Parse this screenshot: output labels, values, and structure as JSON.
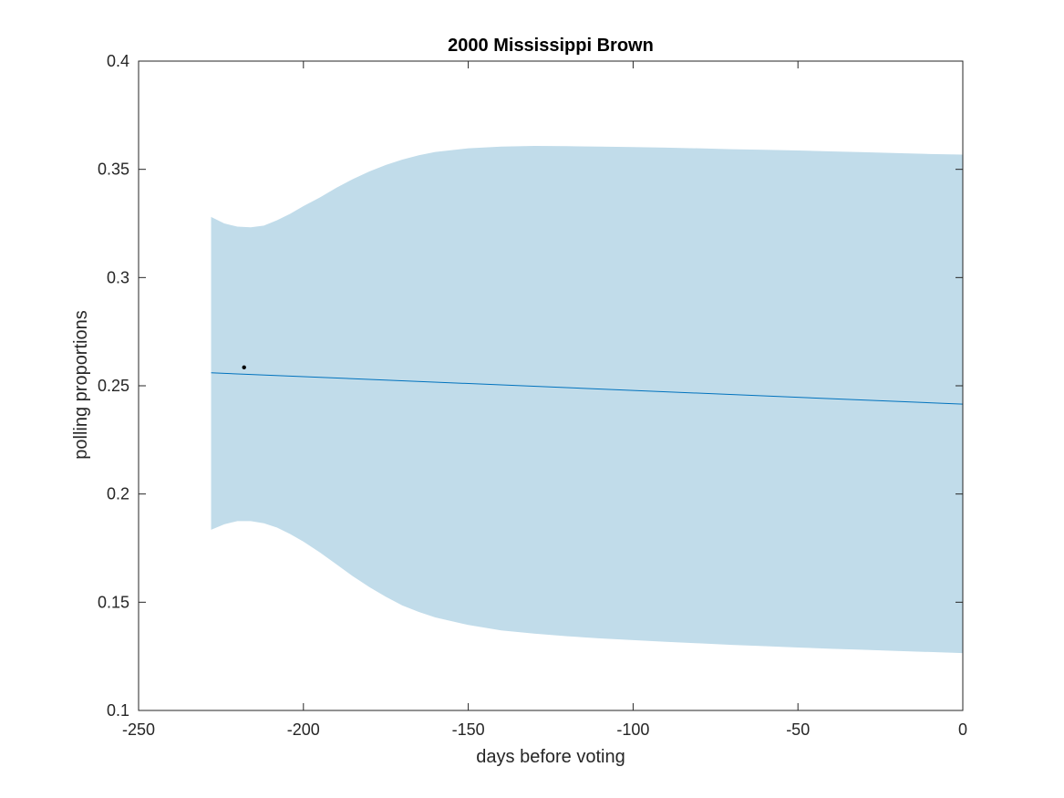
{
  "chart_data": {
    "type": "line",
    "title": "2000 Mississippi Brown",
    "xlabel": "days before voting",
    "ylabel": "polling proportions",
    "xlim": [
      -250,
      0
    ],
    "ylim": [
      0.1,
      0.4
    ],
    "xticks": [
      -250,
      -200,
      -150,
      -100,
      -50,
      0
    ],
    "yticks": [
      0.1,
      0.15,
      0.2,
      0.25,
      0.3,
      0.35,
      0.4
    ],
    "xtick_labels": [
      "-250",
      "-200",
      "-150",
      "-100",
      "-50",
      "0"
    ],
    "ytick_labels": [
      "0.1",
      "0.15",
      "0.2",
      "0.25",
      "0.3",
      "0.35",
      "0.4"
    ],
    "grid": false,
    "series": [
      {
        "kind": "band",
        "color": "#c1dcea",
        "x": [
          -228,
          -224,
          -220,
          -216,
          -212,
          -208,
          -204,
          -200,
          -195,
          -190,
          -185,
          -180,
          -175,
          -170,
          -165,
          -160,
          -150,
          -140,
          -130,
          -120,
          -110,
          -100,
          -90,
          -80,
          -70,
          -60,
          -50,
          -40,
          -30,
          -20,
          -10,
          0
        ],
        "upper": [
          0.328,
          0.325,
          0.3235,
          0.3232,
          0.324,
          0.3265,
          0.3295,
          0.333,
          0.337,
          0.3415,
          0.3455,
          0.349,
          0.352,
          0.3545,
          0.3565,
          0.358,
          0.3597,
          0.3605,
          0.3608,
          0.3607,
          0.3605,
          0.3603,
          0.36,
          0.3597,
          0.3593,
          0.359,
          0.3587,
          0.3583,
          0.3579,
          0.3575,
          0.3571,
          0.3568
        ],
        "lower": [
          0.1835,
          0.186,
          0.1875,
          0.1875,
          0.1865,
          0.1845,
          0.1815,
          0.178,
          0.173,
          0.1675,
          0.162,
          0.157,
          0.1525,
          0.1485,
          0.1455,
          0.143,
          0.1395,
          0.137,
          0.1355,
          0.1343,
          0.1333,
          0.1325,
          0.1317,
          0.131,
          0.1303,
          0.1297,
          0.1291,
          0.1285,
          0.128,
          0.1275,
          0.127,
          0.1265
        ]
      },
      {
        "kind": "line",
        "color": "#0072bd",
        "x": [
          -228,
          0
        ],
        "y": [
          0.256,
          0.2415
        ]
      },
      {
        "kind": "scatter",
        "color": "#000000",
        "x": [
          -218
        ],
        "y": [
          0.2585
        ]
      }
    ]
  }
}
